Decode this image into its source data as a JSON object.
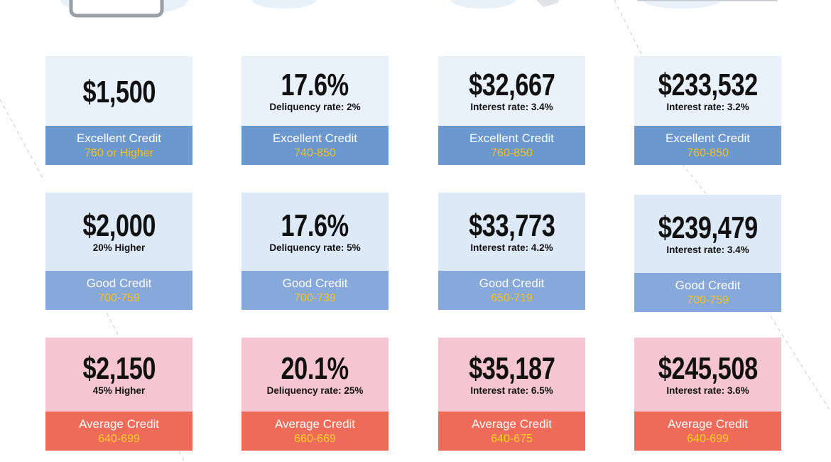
{
  "rows": [
    [
      {
        "value": "$1,500",
        "tier": "Excellent Credit",
        "range": "760 or Higher"
      },
      {
        "value": "17.6%",
        "note": "Deliquency rate: 2%",
        "tier": "Excellent Credit",
        "range": "740-850"
      },
      {
        "value": "$32,667",
        "note": "Interest rate: 3.4%",
        "tier": "Excellent Credit",
        "range": "760-850"
      },
      {
        "value": "$233,532",
        "note": "Interest rate: 3.2%",
        "tier": "Excellent Credit",
        "range": "760-850"
      }
    ],
    [
      {
        "value": "$2,000",
        "note": "20% Higher",
        "tier": "Good Credit",
        "range": "700-759"
      },
      {
        "value": "17.6%",
        "note": "Deliquency rate: 5%",
        "tier": "Good Credit",
        "range": "700-739"
      },
      {
        "value": "$33,773",
        "note": "Interest rate: 4.2%",
        "tier": "Good Credit",
        "range": "650-719"
      },
      {
        "value": "$239,479",
        "note": "Interest rate: 3.4%",
        "tier": "Good Credit",
        "range": "700-759"
      }
    ],
    [
      {
        "value": "$2,150",
        "note": "45% Higher",
        "tier": "Average Credit",
        "range": "640-699"
      },
      {
        "value": "20.1%",
        "note": "Deliquency rate: 25%",
        "tier": "Average Credit",
        "range": "660-669"
      },
      {
        "value": "$35,187",
        "note": "Interest rate: 6.5%",
        "tier": "Average Credit",
        "range": "640-675"
      },
      {
        "value": "$245,508",
        "note": "Interest rate: 3.6%",
        "tier": "Average Credit",
        "range": "640-699"
      }
    ]
  ]
}
